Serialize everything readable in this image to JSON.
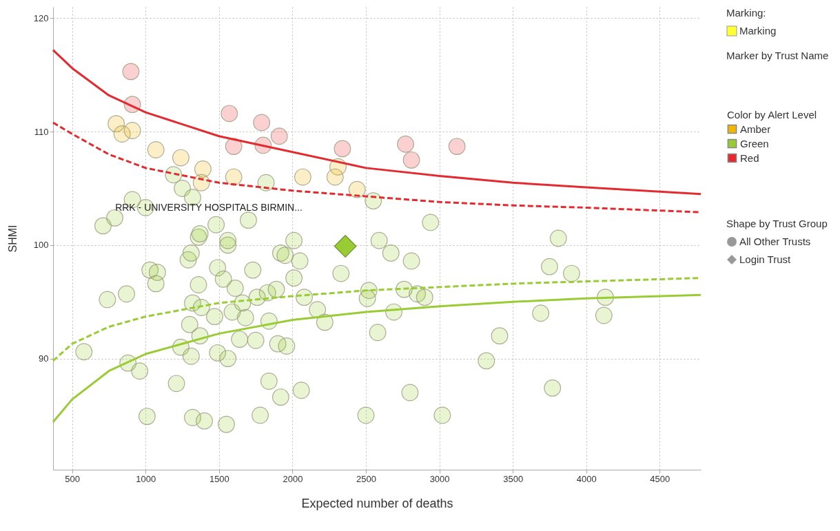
{
  "chart_data": {
    "type": "scatter",
    "xlabel": "Expected number of deaths",
    "ylabel": "SHMI",
    "legend_title": "Color by Alert Level",
    "legend": "right",
    "grid": true,
    "xlim": [
      370,
      4780
    ],
    "ylim": [
      80.2,
      121
    ],
    "xticks": [
      500,
      1000,
      1500,
      2000,
      2500,
      3000,
      3500,
      4000,
      4500
    ],
    "yticks": [
      90,
      100,
      110,
      120
    ],
    "series": [
      {
        "name": "Amber",
        "color": "#f2b600",
        "marker": "circle",
        "x": [
          800,
          840,
          910,
          1070,
          1240,
          1390,
          1380,
          1600,
          2070,
          2310,
          2290,
          2440
        ],
        "values": [
          110.7,
          109.8,
          110.1,
          108.4,
          107.7,
          106.7,
          105.5,
          106.0,
          106.0,
          106.9,
          106.0,
          104.9
        ]
      },
      {
        "name": "Green",
        "color": "#99cc33",
        "marker": "circle",
        "x": [
          580,
          740,
          870,
          1030,
          1080,
          1070,
          880,
          960,
          1010,
          1210,
          1320,
          1400,
          1550,
          1780,
          1840,
          1240,
          1310,
          1490,
          1560,
          1300,
          1370,
          1320,
          1380,
          1470,
          1360,
          1290,
          1310,
          1360,
          1490,
          1530,
          1560,
          1610,
          1590,
          1660,
          1680,
          1730,
          1640,
          1750,
          1760,
          1830,
          1890,
          1840,
          1900,
          1920,
          1190,
          1250,
          1320,
          1820,
          910,
          1000,
          710,
          790,
          1370,
          1480,
          1560,
          1700,
          2550,
          2940,
          2010,
          2590,
          1950,
          2050,
          2670,
          2810,
          2330,
          2010,
          2520,
          2510,
          2760,
          2850,
          2900,
          2080,
          2170,
          2220,
          2690,
          2580,
          1960,
          2060,
          1920,
          2500,
          2800,
          3020,
          3320,
          3410,
          3810,
          3750,
          3900,
          3690,
          4130,
          4120,
          3770
        ],
        "values": [
          90.6,
          95.2,
          95.7,
          97.8,
          97.6,
          96.6,
          89.6,
          88.9,
          84.9,
          87.8,
          84.8,
          84.5,
          84.2,
          85.0,
          88.0,
          91.0,
          90.2,
          90.5,
          90.0,
          93.0,
          92.0,
          94.9,
          94.5,
          93.7,
          96.5,
          98.7,
          99.3,
          100.7,
          98.0,
          97.0,
          100.0,
          96.2,
          94.1,
          94.9,
          93.6,
          97.8,
          91.7,
          91.6,
          95.4,
          95.8,
          96.1,
          93.3,
          91.3,
          99.3,
          106.2,
          105.0,
          104.2,
          105.5,
          104.0,
          103.3,
          101.7,
          102.4,
          101.0,
          101.8,
          100.4,
          102.2,
          103.9,
          102.0,
          100.4,
          100.4,
          99.1,
          98.6,
          99.3,
          98.6,
          97.5,
          97.1,
          96.0,
          95.3,
          96.1,
          95.7,
          95.4,
          95.4,
          94.3,
          93.2,
          94.1,
          92.3,
          91.1,
          87.2,
          86.6,
          85.0,
          87.0,
          85.0,
          89.8,
          92.0,
          100.6,
          98.1,
          97.5,
          94.0,
          95.4,
          93.8,
          87.4
        ]
      },
      {
        "name": "Red",
        "color": "#e8282d",
        "marker": "circle",
        "x": [
          900,
          910,
          1570,
          1600,
          1790,
          1800,
          1910,
          2340,
          2770,
          2810,
          3120
        ],
        "values": [
          115.3,
          112.4,
          111.6,
          108.7,
          110.8,
          108.8,
          109.6,
          108.5,
          108.9,
          107.5,
          108.7
        ]
      },
      {
        "color": "#99cc33",
        "marker": "diamond",
        "x": [
          2360
        ],
        "values": [
          99.9
        ]
      },
      {
        "type": "line",
        "color": "#e32a2f",
        "line_style": "solid",
        "x": [
          370,
          500,
          750,
          1000,
          1500,
          2000,
          2500,
          3000,
          3500,
          4000,
          4780
        ],
        "values": [
          117.2,
          115.6,
          113.2,
          111.7,
          109.6,
          108.2,
          106.8,
          106.1,
          105.5,
          105.1,
          104.5
        ]
      },
      {
        "type": "line",
        "color": "#e32a2f",
        "line_style": "dashed",
        "x": [
          370,
          500,
          750,
          1000,
          1500,
          2000,
          2500,
          3000,
          3500,
          4000,
          4780
        ],
        "values": [
          110.8,
          109.8,
          108.0,
          106.8,
          105.5,
          104.8,
          104.3,
          103.8,
          103.5,
          103.3,
          102.9
        ]
      },
      {
        "type": "line",
        "color": "#99cc33",
        "line_style": "dashed",
        "x": [
          370,
          500,
          750,
          1000,
          1500,
          2000,
          2500,
          3000,
          3500,
          4000,
          4780
        ],
        "values": [
          89.8,
          91.3,
          92.8,
          93.7,
          94.9,
          95.5,
          96.0,
          96.3,
          96.6,
          96.8,
          97.1
        ]
      },
      {
        "type": "line",
        "color": "#99cc33",
        "line_style": "solid",
        "x": [
          370,
          500,
          750,
          1000,
          1500,
          2000,
          2500,
          3000,
          3500,
          4000,
          4780
        ],
        "values": [
          84.4,
          86.4,
          88.9,
          90.4,
          92.2,
          93.4,
          94.1,
          94.6,
          95.0,
          95.3,
          95.6
        ]
      }
    ],
    "annotations": [
      "RRK - UNIVERSITY HOSPITALS BIRMIN...",
      "Marking:",
      "Marking",
      "Marker by Trust Name",
      "Shape by Trust Group",
      "All Other Trusts",
      "Login Trust"
    ]
  }
}
